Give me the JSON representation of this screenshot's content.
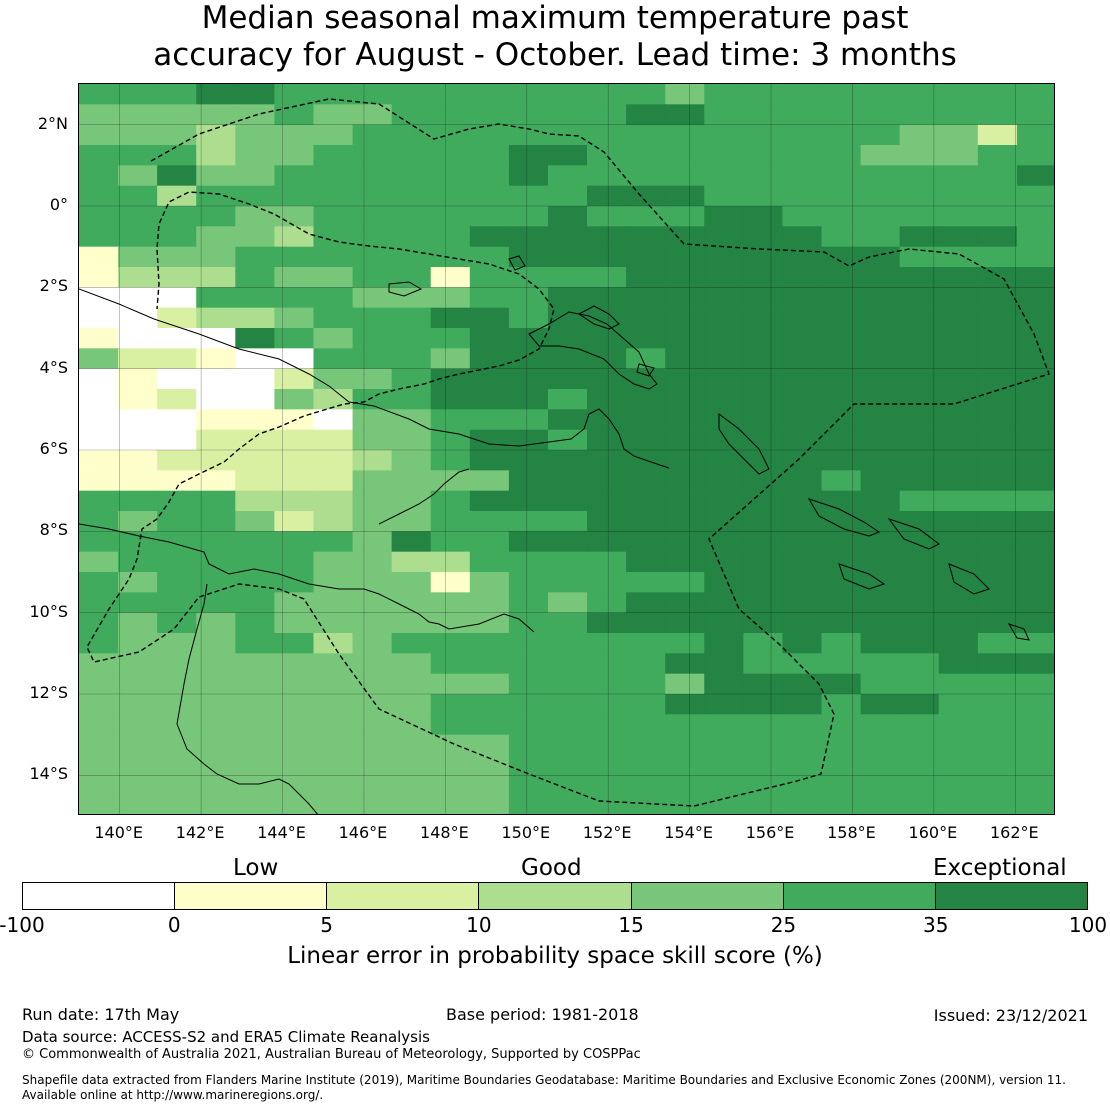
{
  "title_line1": "Median seasonal maximum temperature past",
  "title_line2": "accuracy for August - October. Lead time: 3 months",
  "map": {
    "lon_ticks": [
      "140°E",
      "142°E",
      "144°E",
      "146°E",
      "148°E",
      "150°E",
      "152°E",
      "154°E",
      "156°E",
      "158°E",
      "160°E",
      "162°E"
    ],
    "lat_ticks": [
      "2°N",
      "0°",
      "2°S",
      "4°S",
      "6°S",
      "8°S",
      "10°S",
      "12°S",
      "14°S"
    ],
    "lon_range": [
      139,
      163
    ],
    "lat_range": [
      -15,
      3
    ],
    "grid_colors": [
      "#ffffff",
      "#ffffcc",
      "#d9f0a3",
      "#addd8e",
      "#78c679",
      "#41ab5d",
      "#238443"
    ],
    "skill_grid": [
      "5556655555555554555555555",
      "4444454455555566555555555",
      "4443444555555555555554425",
      "5553445555566555555544455",
      "5464455555565555555555556",
      "5535555555555666555555555",
      "5555445555556555665555555",
      "5554435555666666666556665",
      "1444555555566666666665555",
      "1333544551555566666666666",
      "0005555444556666666666666",
      "0023345556656666666666666",
      "1000654555666666666666666",
      "4221005554666656666666666",
      "0100024456666666666666666",
      "0120043556665666666666666",
      "0001110445556666666666666",
      "0002222445665666666666666",
      "1122222345666666666666666",
      "1111222444466666666566666",
      "5555333445666666666665555",
      "5455423445555666666666666",
      "5555555465566666666666666",
      "4555554433555566666666666",
      "5455554441455555666666666",
      "5555544444454566666666666",
      "5454544444455666666666666",
      "5444553455555555656566655",
      "4444444445555556655555666",
      "4444444444455554666655555",
      "4444444445555556666566555",
      "4444444445555555555555555",
      "4444444444455555555555555",
      "4444444444455555555555555",
      "4444444444455555555555555",
      "4444444444455555555555555"
    ]
  },
  "colorbar": {
    "colors": [
      "#ffffff",
      "#ffffcc",
      "#d9f0a3",
      "#addd8e",
      "#78c679",
      "#41ab5d",
      "#238443"
    ],
    "ticks": [
      "-100",
      "0",
      "5",
      "10",
      "15",
      "25",
      "35",
      "100"
    ],
    "categories": [
      "Low",
      "Good",
      "Exceptional"
    ],
    "label": "Linear error in probability space skill score (%)"
  },
  "footer": {
    "run_date": "Run date: 17th May",
    "base_period": "Base period: 1981-2018",
    "issued": "Issued: 23/12/2021",
    "data_source": "Data source: ACCESS-S2 and ERA5 Climate Reanalysis",
    "copyright": "© Commonwealth of Australia 2021, Australian Bureau of Meteorology, Supported by COSPPac",
    "shapefile_line1": "Shapefile data extracted from Flanders Marine Institute (2019), Maritime Boundaries Geodatabase: Maritime Boundaries and Exclusive Economic Zones (200NM), version 11.",
    "shapefile_line2": "Available online at http://www.marineregions.org/."
  }
}
